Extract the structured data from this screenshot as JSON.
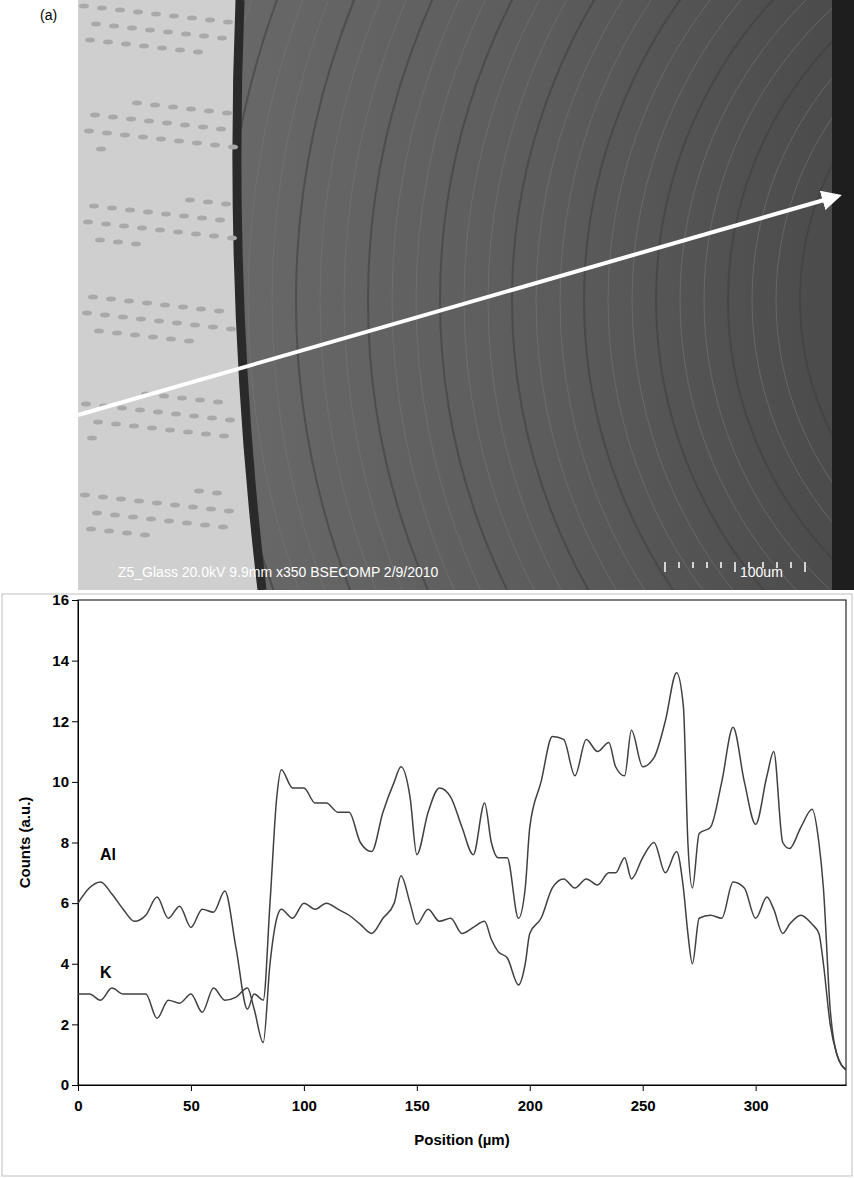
{
  "panel_label": "(a)",
  "micrograph": {
    "caption": "Z5_Glass 20.0kV 9.9mm x350 BSECOMP 2/9/2010",
    "scale_label": "100um"
  },
  "chart_data": {
    "type": "line",
    "x_label": "Position (µm)",
    "y_label": "Counts (a.u.)",
    "x": [
      0,
      5,
      10,
      15,
      20,
      25,
      30,
      35,
      40,
      45,
      50,
      55,
      60,
      65,
      70,
      75,
      78,
      82,
      85,
      88,
      90,
      95,
      100,
      105,
      110,
      115,
      120,
      125,
      130,
      135,
      140,
      143,
      147,
      150,
      155,
      160,
      165,
      170,
      175,
      180,
      183,
      186,
      190,
      195,
      198,
      200,
      205,
      210,
      215,
      220,
      225,
      230,
      235,
      238,
      242,
      245,
      250,
      255,
      260,
      265,
      268,
      270,
      272,
      275,
      280,
      285,
      290,
      295,
      300,
      305,
      308,
      312,
      315,
      320,
      325,
      328,
      330,
      333,
      336,
      340
    ],
    "series": [
      {
        "name": "Al",
        "color": "#404040",
        "values": [
          6.0,
          6.5,
          6.7,
          6.3,
          5.8,
          5.4,
          5.6,
          6.2,
          5.5,
          5.9,
          5.2,
          5.8,
          5.7,
          6.4,
          4.5,
          2.5,
          3.0,
          2.8,
          6.0,
          9.5,
          10.4,
          9.8,
          9.8,
          9.3,
          9.3,
          9.0,
          9.0,
          8.0,
          7.7,
          9.0,
          10.0,
          10.5,
          9.5,
          7.6,
          9.0,
          9.8,
          9.5,
          8.5,
          7.6,
          9.3,
          8.0,
          7.5,
          7.5,
          5.5,
          6.5,
          8.5,
          10.0,
          11.5,
          11.4,
          10.2,
          11.4,
          11.0,
          11.3,
          10.5,
          10.2,
          11.7,
          10.5,
          10.8,
          12.0,
          13.6,
          12.5,
          8.0,
          6.5,
          8.3,
          8.5,
          10.0,
          11.8,
          10.0,
          8.6,
          10.2,
          11.0,
          8.0,
          7.8,
          8.5,
          9.1,
          8.0,
          6.5,
          2.5,
          1.0,
          0.5
        ]
      },
      {
        "name": "K",
        "color": "#404040",
        "values": [
          3.0,
          3.0,
          2.8,
          3.2,
          3.0,
          3.0,
          3.0,
          2.2,
          2.8,
          2.7,
          3.0,
          2.4,
          3.2,
          2.8,
          2.9,
          3.2,
          2.5,
          1.4,
          4.0,
          5.5,
          5.8,
          5.5,
          6.0,
          5.8,
          6.0,
          5.8,
          5.6,
          5.3,
          5.0,
          5.5,
          6.0,
          6.9,
          6.0,
          5.3,
          5.8,
          5.4,
          5.5,
          5.0,
          5.2,
          5.4,
          4.8,
          4.4,
          4.2,
          3.3,
          4.0,
          5.0,
          5.5,
          6.5,
          6.8,
          6.5,
          6.8,
          6.6,
          7.0,
          7.0,
          7.5,
          6.8,
          7.5,
          8.0,
          7.0,
          7.7,
          6.5,
          5.0,
          4.0,
          5.5,
          5.6,
          5.5,
          6.7,
          6.5,
          5.5,
          6.2,
          5.8,
          5.0,
          5.3,
          5.6,
          5.3,
          5.0,
          4.0,
          2.0,
          1.0,
          0.5
        ]
      }
    ],
    "xlim": [
      0,
      340
    ],
    "xticks": [
      0,
      50,
      100,
      150,
      200,
      250,
      300
    ],
    "ylim": [
      0,
      16
    ],
    "yticks": [
      0,
      2,
      4,
      6,
      8,
      10,
      12,
      14,
      16
    ],
    "grid": false
  }
}
